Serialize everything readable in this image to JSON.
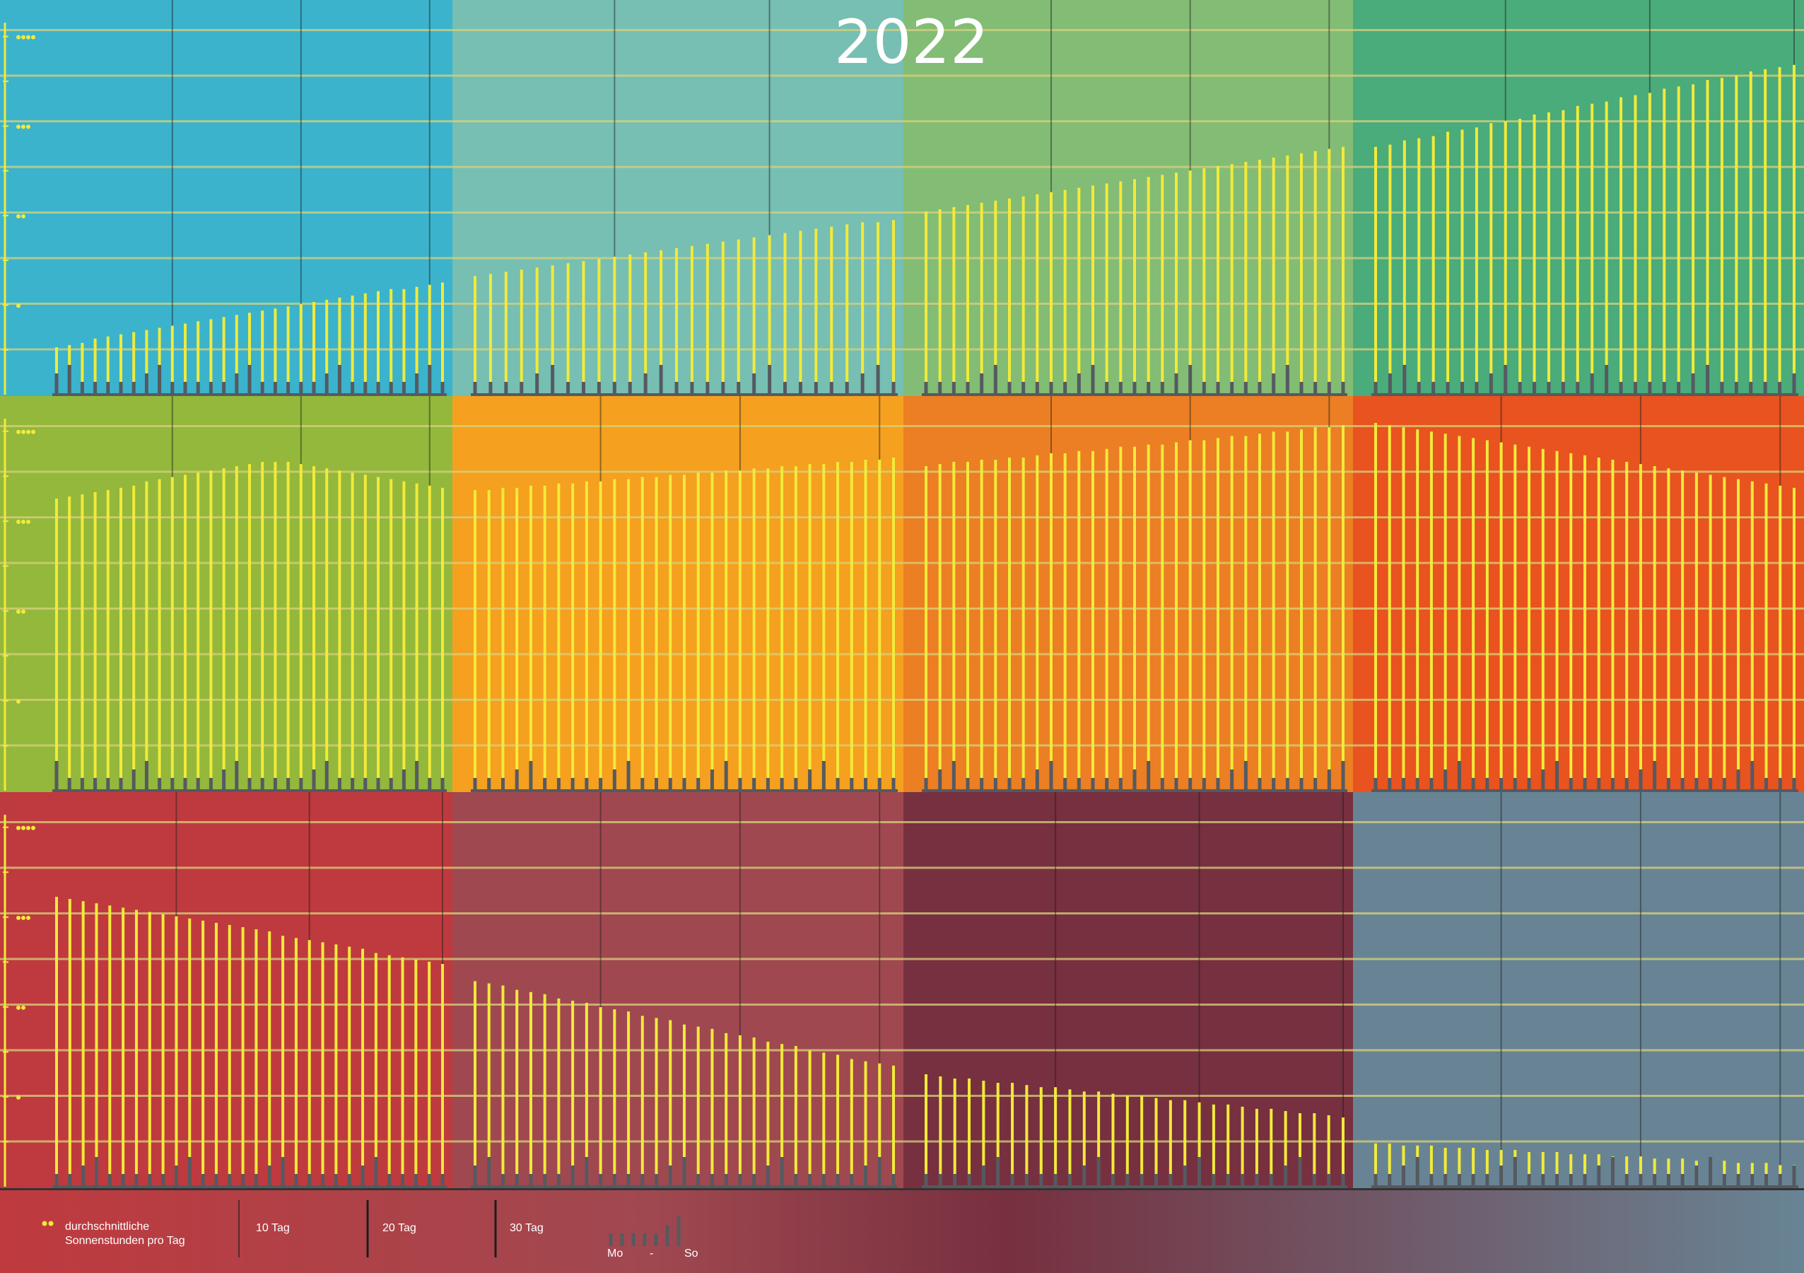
{
  "title": "2022",
  "legend": {
    "sun_label_line1": "durchschnittliche",
    "sun_label_line2": "Sonnenstunden pro Tag",
    "day10": "10 Tag",
    "day20": "20 Tag",
    "day30": "30 Tag",
    "week_start": "Mo",
    "week_dash": "-",
    "week_end": "So"
  },
  "chart_data": {
    "type": "bar",
    "title": "2022",
    "ylabel": "durchschnittliche Sonnenstunden pro Tag",
    "ylim": [
      0,
      17
    ],
    "y_unit": "hours",
    "grid": true,
    "y_tick_markers": [
      4,
      8,
      12,
      16
    ],
    "weekday_bar_series": "Mo - So",
    "months": [
      {
        "month": 1,
        "background": "#3bb3cc",
        "days": 31,
        "start_weekday": 6,
        "values": [
          2.2,
          2.3,
          2.4,
          2.6,
          2.7,
          2.8,
          2.9,
          3.0,
          3.1,
          3.2,
          3.3,
          3.4,
          3.5,
          3.6,
          3.7,
          3.8,
          3.9,
          4.0,
          4.1,
          4.2,
          4.3,
          4.4,
          4.5,
          4.6,
          4.7,
          4.8,
          4.9,
          4.9,
          5.0,
          5.1,
          5.2
        ]
      },
      {
        "month": 2,
        "background": "#76bfb2",
        "days": 28,
        "start_weekday": 2,
        "values": [
          5.5,
          5.6,
          5.7,
          5.8,
          5.9,
          6.0,
          6.1,
          6.2,
          6.3,
          6.4,
          6.5,
          6.6,
          6.7,
          6.8,
          6.9,
          7.0,
          7.1,
          7.2,
          7.3,
          7.4,
          7.5,
          7.6,
          7.7,
          7.8,
          7.9,
          8.0,
          8.0,
          8.1
        ]
      },
      {
        "month": 3,
        "background": "#83bc75",
        "days": 31,
        "start_weekday": 2,
        "values": [
          8.5,
          8.6,
          8.7,
          8.8,
          8.9,
          9.0,
          9.1,
          9.2,
          9.3,
          9.4,
          9.5,
          9.6,
          9.7,
          9.8,
          9.9,
          10.0,
          10.1,
          10.2,
          10.3,
          10.4,
          10.5,
          10.6,
          10.7,
          10.8,
          10.9,
          11.0,
          11.1,
          11.2,
          11.3,
          11.4,
          11.5
        ]
      },
      {
        "month": 4,
        "background": "#4aab7b",
        "days": 30,
        "start_weekday": 5,
        "values": [
          11.5,
          11.6,
          11.8,
          11.9,
          12.0,
          12.2,
          12.3,
          12.4,
          12.6,
          12.7,
          12.8,
          13.0,
          13.1,
          13.2,
          13.4,
          13.5,
          13.6,
          13.8,
          13.9,
          14.0,
          14.2,
          14.3,
          14.4,
          14.6,
          14.7,
          14.8,
          15.0,
          15.1,
          15.2,
          15.3
        ]
      },
      {
        "month": 5,
        "background": "#93b83b",
        "days": 31,
        "start_weekday": 7,
        "values": [
          13.5,
          13.6,
          13.7,
          13.8,
          13.9,
          14.0,
          14.1,
          14.3,
          14.4,
          14.5,
          14.6,
          14.7,
          14.8,
          14.9,
          15.0,
          15.1,
          15.2,
          15.2,
          15.2,
          15.1,
          15.0,
          14.9,
          14.8,
          14.7,
          14.6,
          14.5,
          14.4,
          14.3,
          14.2,
          14.1,
          14.0
        ]
      },
      {
        "month": 6,
        "background": "#f5a01f",
        "days": 31,
        "start_weekday": 3,
        "values": [
          13.9,
          13.9,
          14.0,
          14.0,
          14.1,
          14.1,
          14.2,
          14.2,
          14.3,
          14.3,
          14.4,
          14.4,
          14.5,
          14.5,
          14.6,
          14.6,
          14.7,
          14.7,
          14.8,
          14.8,
          14.9,
          14.9,
          15.0,
          15.0,
          15.1,
          15.1,
          15.2,
          15.2,
          15.3,
          15.3,
          15.4
        ]
      },
      {
        "month": 7,
        "background": "#ec7e23",
        "days": 31,
        "start_weekday": 5,
        "values": [
          15.0,
          15.1,
          15.2,
          15.2,
          15.3,
          15.3,
          15.4,
          15.4,
          15.5,
          15.6,
          15.6,
          15.7,
          15.7,
          15.8,
          15.9,
          15.9,
          16.0,
          16.0,
          16.1,
          16.2,
          16.2,
          16.3,
          16.4,
          16.4,
          16.5,
          16.6,
          16.6,
          16.7,
          16.8,
          16.8,
          16.9
        ]
      },
      {
        "month": 8,
        "background": "#e8531f",
        "days": 31,
        "start_weekday": 1,
        "values": [
          17.0,
          16.9,
          16.8,
          16.7,
          16.6,
          16.5,
          16.4,
          16.3,
          16.2,
          16.1,
          16.0,
          15.9,
          15.8,
          15.7,
          15.6,
          15.5,
          15.4,
          15.3,
          15.2,
          15.1,
          15.0,
          14.9,
          14.8,
          14.7,
          14.6,
          14.5,
          14.4,
          14.3,
          14.2,
          14.1,
          14.0
        ]
      },
      {
        "month": 9,
        "background": "#bf3a3e",
        "days": 30,
        "start_weekday": 4,
        "values": [
          13.4,
          13.3,
          13.2,
          13.1,
          13.0,
          12.9,
          12.8,
          12.7,
          12.6,
          12.5,
          12.4,
          12.3,
          12.2,
          12.1,
          12.0,
          11.9,
          11.8,
          11.6,
          11.5,
          11.4,
          11.3,
          11.2,
          11.1,
          11.0,
          10.8,
          10.7,
          10.6,
          10.5,
          10.4,
          10.3
        ]
      },
      {
        "month": 10,
        "background": "#a04850",
        "days": 31,
        "start_weekday": 6,
        "values": [
          9.5,
          9.4,
          9.3,
          9.1,
          9.0,
          8.9,
          8.7,
          8.6,
          8.5,
          8.3,
          8.2,
          8.1,
          7.9,
          7.8,
          7.7,
          7.5,
          7.4,
          7.3,
          7.1,
          7.0,
          6.9,
          6.7,
          6.6,
          6.5,
          6.3,
          6.2,
          6.1,
          5.9,
          5.8,
          5.7,
          5.6
        ]
      },
      {
        "month": 11,
        "background": "#77303f",
        "days": 30,
        "start_weekday": 2,
        "values": [
          5.2,
          5.1,
          5.0,
          5.0,
          4.9,
          4.8,
          4.8,
          4.7,
          4.6,
          4.6,
          4.5,
          4.4,
          4.4,
          4.3,
          4.2,
          4.2,
          4.1,
          4.0,
          4.0,
          3.9,
          3.8,
          3.8,
          3.7,
          3.6,
          3.6,
          3.5,
          3.4,
          3.4,
          3.3,
          3.2
        ]
      },
      {
        "month": 12,
        "background": "#688494",
        "days": 31,
        "start_weekday": 4,
        "values": [
          2.0,
          2.0,
          1.9,
          1.9,
          1.9,
          1.8,
          1.8,
          1.8,
          1.7,
          1.7,
          1.7,
          1.6,
          1.6,
          1.6,
          1.5,
          1.5,
          1.5,
          1.4,
          1.4,
          1.4,
          1.3,
          1.3,
          1.3,
          1.2,
          1.2,
          1.2,
          1.1,
          1.1,
          1.1,
          1.0,
          1.0
        ]
      }
    ]
  },
  "colors": {
    "sun_bar": "#f2ea3a",
    "weekday_bar": "#555a60",
    "gridline": "#d8d27c",
    "axis": "#f2ea3a",
    "divider": "#1c1c1c"
  }
}
